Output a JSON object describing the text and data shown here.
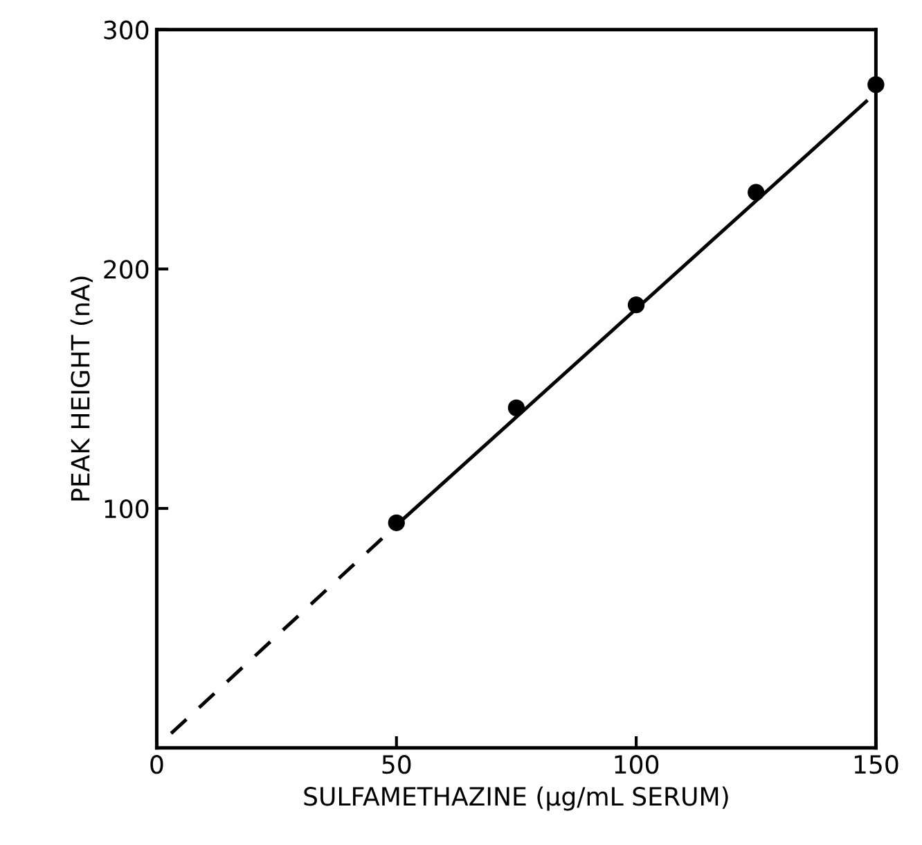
{
  "chart_data": {
    "type": "scatter",
    "xlabel": "SULFAMETHAZINE (μg/mL SERUM)",
    "ylabel": "PEAK HEIGHT (nA)",
    "xlim": [
      0,
      150
    ],
    "ylim": [
      0,
      300
    ],
    "xticks": [
      0,
      50,
      100,
      150
    ],
    "yticks": [
      100,
      200,
      300
    ],
    "grid": false,
    "series": [
      {
        "color": "#000000",
        "marker": "circle",
        "x": [
          50,
          75,
          100,
          125,
          150
        ],
        "values": [
          94,
          142,
          185,
          232,
          277
        ]
      },
      {
        "type": "line",
        "color": "#000000",
        "marker": "none",
        "line_style": "dashed",
        "x": [
          3,
          50
        ],
        "values": [
          6,
          93
        ]
      },
      {
        "type": "line",
        "color": "#000000",
        "marker": "none",
        "line_style": "solid",
        "x": [
          50,
          148
        ],
        "values": [
          93,
          270
        ]
      }
    ]
  }
}
